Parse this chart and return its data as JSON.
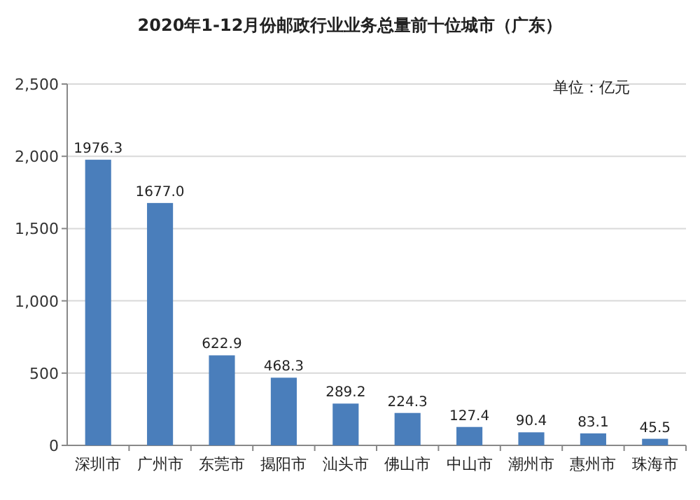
{
  "chart_data": {
    "type": "bar",
    "title": "2020年1-12月份邮政行业业务总量前十位城市（广东）",
    "annotations": [
      "单位：亿元"
    ],
    "categories": [
      "深圳市",
      "广州市",
      "东莞市",
      "揭阳市",
      "汕头市",
      "佛山市",
      "中山市",
      "潮州市",
      "惠州市",
      "珠海市"
    ],
    "values": [
      1976.3,
      1677.0,
      622.9,
      468.3,
      289.2,
      224.3,
      127.4,
      90.4,
      83.1,
      45.5
    ],
    "value_labels": [
      "1976.3",
      "1677.0",
      "622.9",
      "468.3",
      "289.2",
      "224.3",
      "127.4",
      "90.4",
      "83.1",
      "45.5"
    ],
    "color": "#4a7ebb",
    "ylim": [
      0,
      2500
    ],
    "yticks": [
      0,
      500,
      {
        "value": 1000,
        "label": "1,000"
      },
      {
        "value": 1500,
        "label": "1,500"
      },
      {
        "value": 2000,
        "label": "2,000"
      },
      {
        "value": 2500,
        "label": "2,500"
      }
    ],
    "grid": "y"
  }
}
